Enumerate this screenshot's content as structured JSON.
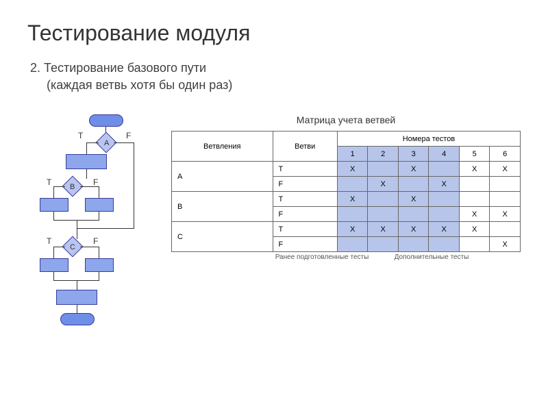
{
  "title": "Тестирование модуля",
  "subtitle_line1": "2. Тестирование базового пути",
  "subtitle_line2": "(каждая ветвь хотя бы один раз)",
  "table_title": "Матрица учета ветвей",
  "flowchart": {
    "nodes": {
      "A": {
        "label": "A"
      },
      "B": {
        "label": "B"
      },
      "C": {
        "label": "C"
      }
    },
    "tf": {
      "T": "T",
      "F": "F"
    },
    "colors": {
      "terminal": "#6f8ee8",
      "process": "#8da6ec",
      "diamond": "#b8c5f0",
      "border": "#4a5aa8"
    }
  },
  "table": {
    "headers": {
      "branching": "Ветвления",
      "branches": "Ветви",
      "test_numbers": "Номера тестов"
    },
    "test_cols": [
      "1",
      "2",
      "3",
      "4",
      "5",
      "6"
    ],
    "rows": [
      {
        "branching": "A",
        "branch": "T",
        "cells": [
          "X",
          "",
          "X",
          "",
          "X",
          "X"
        ]
      },
      {
        "branching": "",
        "branch": "F",
        "cells": [
          "",
          "X",
          "",
          "X",
          "",
          ""
        ]
      },
      {
        "branching": "B",
        "branch": "T",
        "cells": [
          "X",
          "",
          "X",
          "",
          "",
          ""
        ]
      },
      {
        "branching": "",
        "branch": "F",
        "cells": [
          "",
          "",
          "",
          "",
          "X",
          "X"
        ]
      },
      {
        "branching": "C",
        "branch": "T",
        "cells": [
          "X",
          "X",
          "X",
          "X",
          "X",
          ""
        ]
      },
      {
        "branching": "",
        "branch": "F",
        "cells": [
          "",
          "",
          "",
          "",
          "",
          "X"
        ]
      }
    ],
    "shaded_cols": [
      0,
      1,
      2,
      3
    ],
    "shaded_color": "#b8c5ea",
    "unshaded_color": "#ffffff"
  },
  "annotations": {
    "prepared": "Ранее подготовленные тесты",
    "additional": "Дополнительные тесты"
  },
  "colors": {
    "bg": "#ffffff",
    "text": "#333333"
  }
}
